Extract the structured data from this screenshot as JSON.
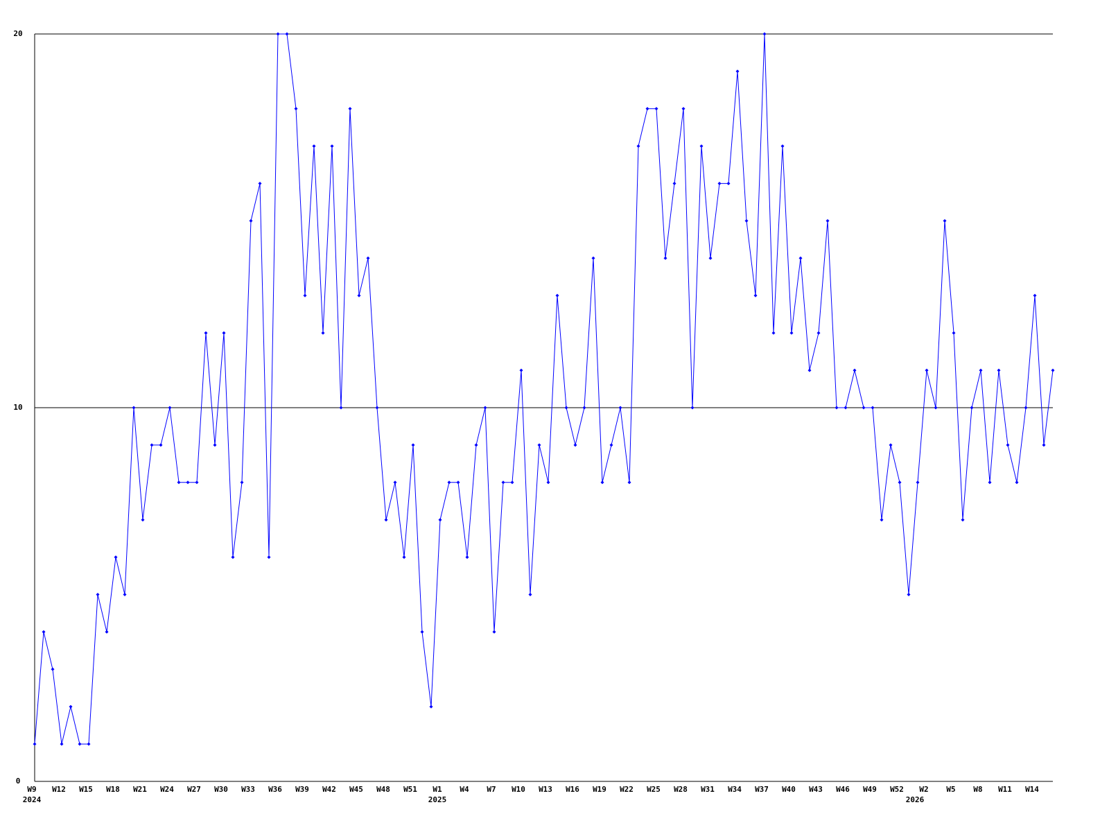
{
  "chart_data": {
    "type": "line",
    "categories": [
      "W9",
      null,
      null,
      "W12",
      null,
      null,
      "W15",
      null,
      null,
      "W18",
      null,
      null,
      "W21",
      null,
      null,
      "W24",
      null,
      null,
      "W27",
      null,
      null,
      "W30",
      null,
      null,
      "W33",
      null,
      null,
      "W36",
      null,
      null,
      "W39",
      null,
      null,
      "W42",
      null,
      null,
      "W45",
      null,
      null,
      "W48",
      null,
      null,
      "W51",
      null,
      null,
      "W1",
      null,
      null,
      "W4",
      null,
      null,
      "W7",
      null,
      null,
      "W10",
      null,
      null,
      "W13",
      null,
      null,
      "W16",
      null,
      null,
      "W19",
      null,
      null,
      "W22",
      null,
      null,
      "W25",
      null,
      null,
      "W28",
      null,
      null,
      "W31",
      null,
      null,
      "W34",
      null,
      null,
      "W37",
      null,
      null,
      "W40",
      null,
      null,
      "W43",
      null,
      null,
      "W46",
      null,
      null,
      "W49",
      null,
      null,
      "W52",
      null,
      null,
      "W2",
      null,
      null,
      "W5",
      null,
      null,
      "W8",
      null,
      null,
      "W11",
      null,
      null,
      "W14",
      null,
      null
    ],
    "year_labels": [
      {
        "label": "2024",
        "category": 0
      },
      {
        "label": "2025",
        "category": 45
      },
      {
        "label": "2026",
        "category": 98
      }
    ],
    "series": [
      {
        "color": "#0000ff",
        "values": [
          1,
          4,
          3,
          1,
          2,
          1,
          1,
          5,
          4,
          6,
          5,
          10,
          7,
          9,
          9,
          10,
          8,
          8,
          8,
          12,
          9,
          12,
          6,
          8,
          15,
          16,
          6,
          20,
          20,
          18,
          13,
          17,
          12,
          17,
          10,
          18,
          13,
          14,
          10,
          7,
          8,
          6,
          9,
          4,
          2,
          7,
          8,
          8,
          6,
          9,
          10,
          4,
          8,
          8,
          11,
          5,
          9,
          8,
          13,
          10,
          9,
          10,
          14,
          8,
          9,
          10,
          8,
          17,
          18,
          18,
          14,
          16,
          18,
          10,
          17,
          14,
          16,
          16,
          19,
          15,
          13,
          20,
          12,
          17,
          12,
          14,
          11,
          12,
          15,
          10,
          10,
          11,
          10,
          10,
          7,
          9,
          8,
          5,
          8,
          11,
          10,
          15,
          12,
          7,
          10,
          11,
          8,
          11,
          9,
          8,
          10,
          13,
          9,
          11
        ]
      }
    ],
    "ylim": [
      0,
      20
    ],
    "yticks": [
      0,
      10,
      20
    ],
    "grid": true
  }
}
